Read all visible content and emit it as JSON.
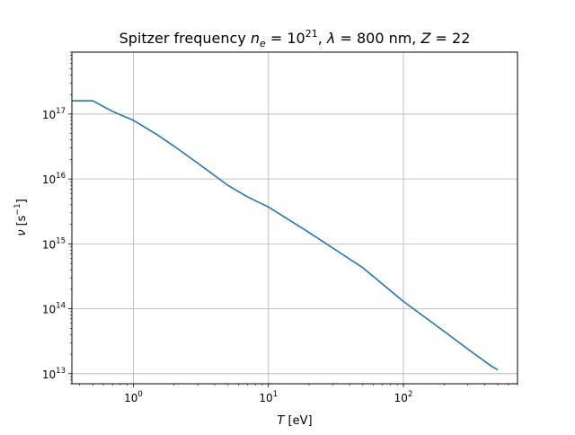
{
  "chart_data": {
    "type": "line",
    "title": {
      "prefix": "Spitzer frequency ",
      "ne_symbol": "n",
      "ne_sub": "e",
      "ne_eq": " = 10",
      "ne_exp": "21",
      "sep1": ", ",
      "lambda_symbol": "λ",
      "lambda_eq": " = 800 nm, ",
      "z_symbol": "Z",
      "z_eq": " = 22"
    },
    "xlabel": {
      "symbol": "T",
      "unit": " [eV]"
    },
    "ylabel": {
      "symbol": "ν",
      "unit_pre": " [s",
      "unit_exp": "−1",
      "unit_post": "]"
    },
    "xscale": "log",
    "yscale": "log",
    "xlim": [
      0.35,
      700
    ],
    "ylim": [
      7000000000000.0,
      9e+17
    ],
    "grid": true,
    "x_ticks": [
      {
        "value": 1,
        "base": "10",
        "exp": "0"
      },
      {
        "value": 10,
        "base": "10",
        "exp": "1"
      },
      {
        "value": 100,
        "base": "10",
        "exp": "2"
      }
    ],
    "y_ticks": [
      {
        "value": 10000000000000.0,
        "base": "10",
        "exp": "13"
      },
      {
        "value": 100000000000000.0,
        "base": "10",
        "exp": "14"
      },
      {
        "value": 1000000000000000.0,
        "base": "10",
        "exp": "15"
      },
      {
        "value": 1e+16,
        "base": "10",
        "exp": "16"
      },
      {
        "value": 1e+17,
        "base": "10",
        "exp": "17"
      }
    ],
    "series": [
      {
        "color": "#1f77b4",
        "x": [
          0.35,
          0.5,
          0.7,
          1.0,
          1.5,
          2.0,
          3.0,
          5.0,
          7.0,
          10,
          20,
          50,
          100,
          200,
          300,
          450,
          500
        ],
        "y": [
          1.6e+17,
          1.6e+17,
          1.1e+17,
          8e+16,
          4.8e+16,
          3.2e+16,
          1.75e+16,
          8000000000000000.0,
          5300000000000000.0,
          3700000000000000.0,
          1500000000000000.0,
          430000000000000.0,
          130000000000000.0,
          45000000000000.0,
          24000000000000.0,
          13000000000000.0,
          11500000000000.0
        ]
      }
    ]
  }
}
